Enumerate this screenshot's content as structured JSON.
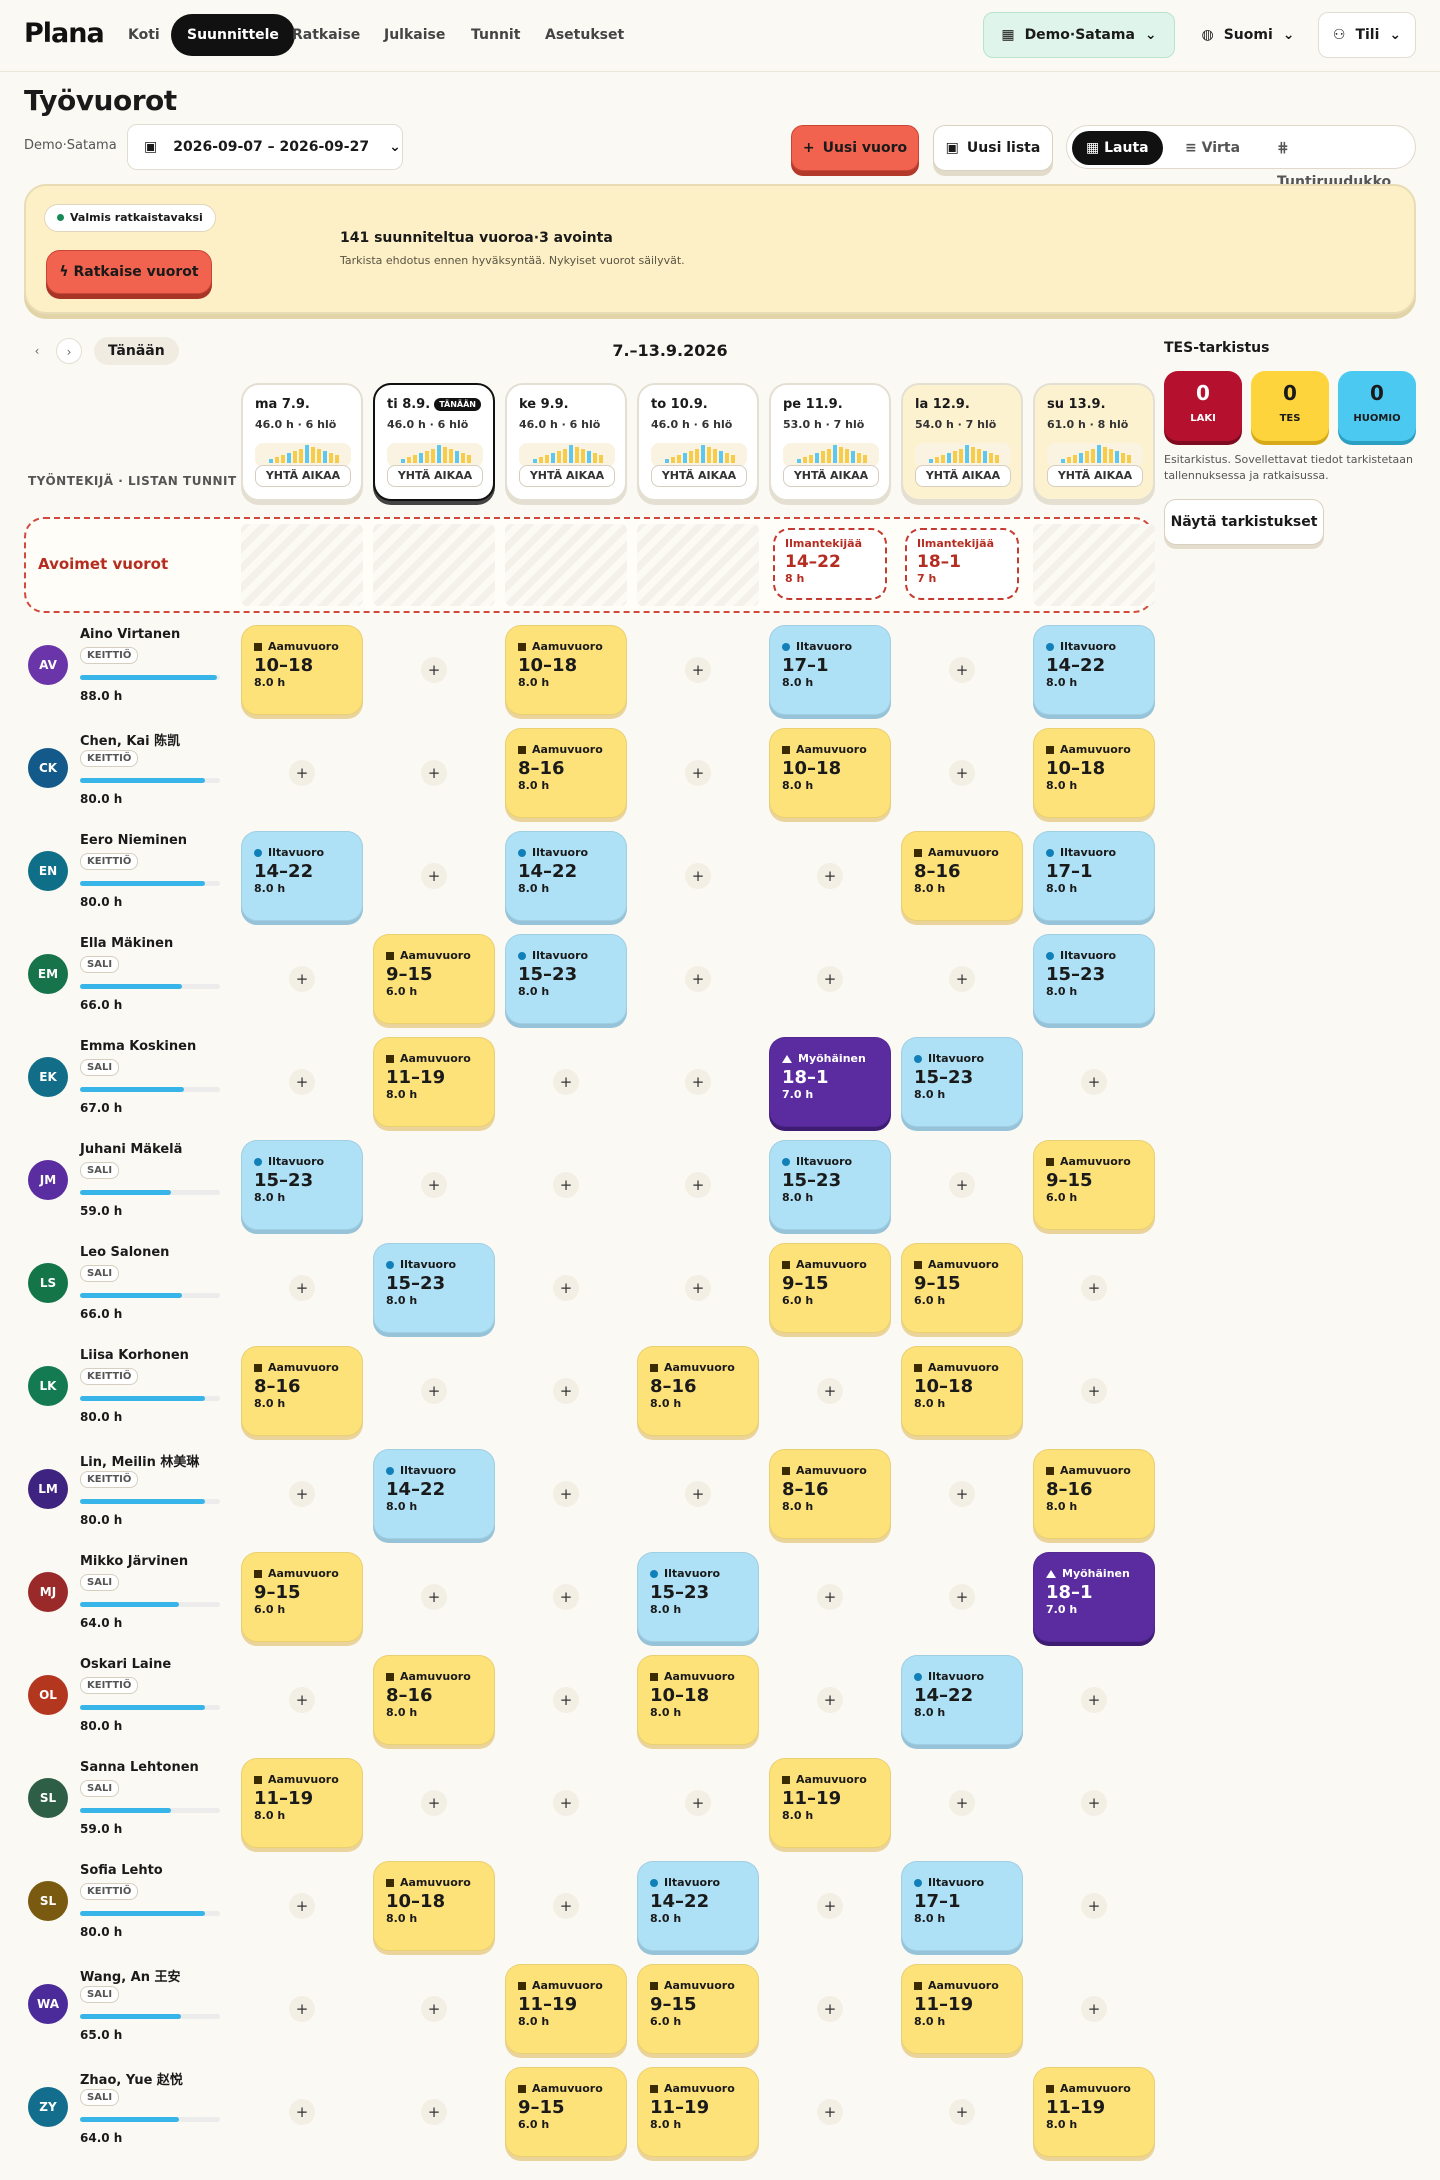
{
  "app": {
    "logo": "Plana"
  },
  "nav": {
    "tabs": [
      "Koti",
      "Suunnittele",
      "Ratkaise",
      "Julkaise",
      "Tunnit",
      "Asetukset"
    ],
    "active": "Suunnittele",
    "location": "Demo·Satama",
    "language": "Suomi",
    "account": "Tili"
  },
  "page": {
    "title": "Työvuorot",
    "site": "Demo·Satama",
    "date_range": "2026-09-07 – 2026-09-27"
  },
  "actions": {
    "new_shift": "Uusi vuoro",
    "new_list": "Uusi lista"
  },
  "views": [
    "Lauta",
    "Virta",
    "Tuntiruudukko"
  ],
  "active_view": "Lauta",
  "banner": {
    "status": "Valmis ratkaistavaksi",
    "solve": "Ratkaise vuorot",
    "summary": "141 suunniteltua vuoroa·3 avointa",
    "detail": "Tarkista ehdotus ennen hyväksyntää. Nykyiset vuorot säilyvät."
  },
  "week": {
    "label": "7.–13.9.2026",
    "today": "Tänään",
    "col_header": "TYÖNTEKIJÄ · LISTAN TUNNIT",
    "today_badge": "TÄNÄÄN",
    "toggle": "YHTÄ AIKAA"
  },
  "days": [
    {
      "label": "ma 7.9.",
      "stats": "46.0 h · 6 hlö"
    },
    {
      "label": "ti 8.9.",
      "stats": "46.0 h · 6 hlö"
    },
    {
      "label": "ke 9.9.",
      "stats": "46.0 h · 6 hlö"
    },
    {
      "label": "to 10.9.",
      "stats": "46.0 h · 6 hlö"
    },
    {
      "label": "pe 11.9.",
      "stats": "53.0 h · 7 hlö"
    },
    {
      "label": "la 12.9.",
      "stats": "54.0 h · 7 hlö"
    },
    {
      "label": "su 13.9.",
      "stats": "61.0 h · 8 hlö"
    }
  ],
  "open": {
    "label": "Avoimet vuorot",
    "shifts": [
      {
        "role": "Ilmantekijää",
        "time": "14–22",
        "hours": "8 h"
      },
      {
        "role": "Ilmantekijää",
        "time": "18–1",
        "hours": "7 h"
      }
    ]
  },
  "tes": {
    "title": "TES-tarkistus",
    "laki": "0",
    "laki_label": "LAKI",
    "tes": "0",
    "tes_label": "TES",
    "huomio": "0",
    "huomio_label": "HUOMIO",
    "note": "Esitarkistus. Sovellettavat tiedot tarkistetaan tallennuksessa ja ratkaisussa.",
    "button": "Näytä tarkistukset"
  },
  "shift_types": {
    "m": "Aamuvuoro",
    "i": "Iltavuoro",
    "y": "Myöhäinen"
  },
  "employees": [
    {
      "initials": "AV",
      "name": "Aino Virtanen",
      "tag": "KEITTIÖ",
      "hours": "88.0 h",
      "load": 0.98,
      "color": "#6a35a8",
      "shifts": [
        [
          "m",
          "10–18",
          "8.0 h"
        ],
        null,
        [
          "m",
          "10–18",
          "8.0 h"
        ],
        null,
        [
          "i",
          "17–1",
          "8.0 h"
        ],
        null,
        [
          "i",
          "14–22",
          "8.0 h"
        ]
      ]
    },
    {
      "initials": "CK",
      "name": "Chen, Kai 陈凯",
      "tag": "KEITTIÖ",
      "hours": "80.0 h",
      "load": 0.89,
      "color": "#135a8a",
      "shifts": [
        null,
        null,
        [
          "m",
          "8–16",
          "8.0 h"
        ],
        null,
        [
          "m",
          "10–18",
          "8.0 h"
        ],
        null,
        [
          "m",
          "10–18",
          "8.0 h"
        ]
      ]
    },
    {
      "initials": "EN",
      "name": "Eero Nieminen",
      "tag": "KEITTIÖ",
      "hours": "80.0 h",
      "load": 0.89,
      "color": "#0f6f88",
      "shifts": [
        [
          "i",
          "14–22",
          "8.0 h"
        ],
        null,
        [
          "i",
          "14–22",
          "8.0 h"
        ],
        null,
        null,
        [
          "m",
          "8–16",
          "8.0 h"
        ],
        [
          "i",
          "17–1",
          "8.0 h"
        ]
      ]
    },
    {
      "initials": "EM",
      "name": "Ella Mäkinen",
      "tag": "SALI",
      "hours": "66.0 h",
      "load": 0.73,
      "color": "#17734a",
      "shifts": [
        null,
        [
          "m",
          "9–15",
          "6.0 h"
        ],
        [
          "i",
          "15–23",
          "8.0 h"
        ],
        null,
        null,
        null,
        [
          "i",
          "15–23",
          "8.0 h"
        ]
      ]
    },
    {
      "initials": "EK",
      "name": "Emma Koskinen",
      "tag": "SALI",
      "hours": "67.0 h",
      "load": 0.74,
      "color": "#126d88",
      "shifts": [
        null,
        [
          "m",
          "11–19",
          "8.0 h"
        ],
        null,
        null,
        [
          "y",
          "18–1",
          "7.0 h"
        ],
        [
          "i",
          "15–23",
          "8.0 h"
        ],
        null
      ]
    },
    {
      "initials": "JM",
      "name": "Juhani Mäkelä",
      "tag": "SALI",
      "hours": "59.0 h",
      "load": 0.65,
      "color": "#5a2da0",
      "shifts": [
        [
          "i",
          "15–23",
          "8.0 h"
        ],
        null,
        null,
        null,
        [
          "i",
          "15–23",
          "8.0 h"
        ],
        null,
        [
          "m",
          "9–15",
          "6.0 h"
        ]
      ]
    },
    {
      "initials": "LS",
      "name": "Leo Salonen",
      "tag": "SALI",
      "hours": "66.0 h",
      "load": 0.73,
      "color": "#137548",
      "shifts": [
        null,
        [
          "i",
          "15–23",
          "8.0 h"
        ],
        null,
        null,
        [
          "m",
          "9–15",
          "6.0 h"
        ],
        [
          "m",
          "9–15",
          "6.0 h"
        ],
        null
      ]
    },
    {
      "initials": "LK",
      "name": "Liisa Korhonen",
      "tag": "KEITTIÖ",
      "hours": "80.0 h",
      "load": 0.89,
      "color": "#147a52",
      "shifts": [
        [
          "m",
          "8–16",
          "8.0 h"
        ],
        null,
        null,
        [
          "m",
          "8–16",
          "8.0 h"
        ],
        null,
        [
          "m",
          "10–18",
          "8.0 h"
        ],
        null
      ]
    },
    {
      "initials": "LM",
      "name": "Lin, Meilin 林美琳",
      "tag": "KEITTIÖ",
      "hours": "80.0 h",
      "load": 0.89,
      "color": "#3f2380",
      "shifts": [
        null,
        [
          "i",
          "14–22",
          "8.0 h"
        ],
        null,
        null,
        [
          "m",
          "8–16",
          "8.0 h"
        ],
        null,
        [
          "m",
          "8–16",
          "8.0 h"
        ]
      ]
    },
    {
      "initials": "MJ",
      "name": "Mikko Järvinen",
      "tag": "SALI",
      "hours": "64.0 h",
      "load": 0.71,
      "color": "#9a2a2a",
      "shifts": [
        [
          "m",
          "9–15",
          "6.0 h"
        ],
        null,
        null,
        [
          "i",
          "15–23",
          "8.0 h"
        ],
        null,
        null,
        [
          "y",
          "18–1",
          "7.0 h"
        ]
      ]
    },
    {
      "initials": "OL",
      "name": "Oskari Laine",
      "tag": "KEITTIÖ",
      "hours": "80.0 h",
      "load": 0.89,
      "color": "#b3361f",
      "shifts": [
        null,
        [
          "m",
          "8–16",
          "8.0 h"
        ],
        null,
        [
          "m",
          "10–18",
          "8.0 h"
        ],
        null,
        [
          "i",
          "14–22",
          "8.0 h"
        ],
        null
      ]
    },
    {
      "initials": "SL",
      "name": "Sanna Lehtonen",
      "tag": "SALI",
      "hours": "59.0 h",
      "load": 0.65,
      "color": "#2f5e46",
      "shifts": [
        [
          "m",
          "11–19",
          "8.0 h"
        ],
        null,
        null,
        null,
        [
          "m",
          "11–19",
          "8.0 h"
        ],
        null,
        null
      ]
    },
    {
      "initials": "SL",
      "name": "Sofia Lehto",
      "tag": "KEITTIÖ",
      "hours": "80.0 h",
      "load": 0.89,
      "color": "#7a5a10",
      "shifts": [
        null,
        [
          "m",
          "10–18",
          "8.0 h"
        ],
        null,
        [
          "i",
          "14–22",
          "8.0 h"
        ],
        null,
        [
          "i",
          "17–1",
          "8.0 h"
        ],
        null
      ]
    },
    {
      "initials": "WA",
      "name": "Wang, An 王安",
      "tag": "SALI",
      "hours": "65.0 h",
      "load": 0.72,
      "color": "#4b2a9a",
      "shifts": [
        null,
        null,
        [
          "m",
          "11–19",
          "8.0 h"
        ],
        [
          "m",
          "9–15",
          "6.0 h"
        ],
        null,
        [
          "m",
          "11–19",
          "8.0 h"
        ],
        null
      ]
    },
    {
      "initials": "ZY",
      "name": "Zhao, Yue 赵悦",
      "tag": "SALI",
      "hours": "64.0 h",
      "load": 0.71,
      "color": "#126e8c",
      "shifts": [
        null,
        null,
        [
          "m",
          "9–15",
          "6.0 h"
        ],
        [
          "m",
          "11–19",
          "8.0 h"
        ],
        null,
        null,
        [
          "m",
          "11–19",
          "8.0 h"
        ]
      ]
    }
  ]
}
